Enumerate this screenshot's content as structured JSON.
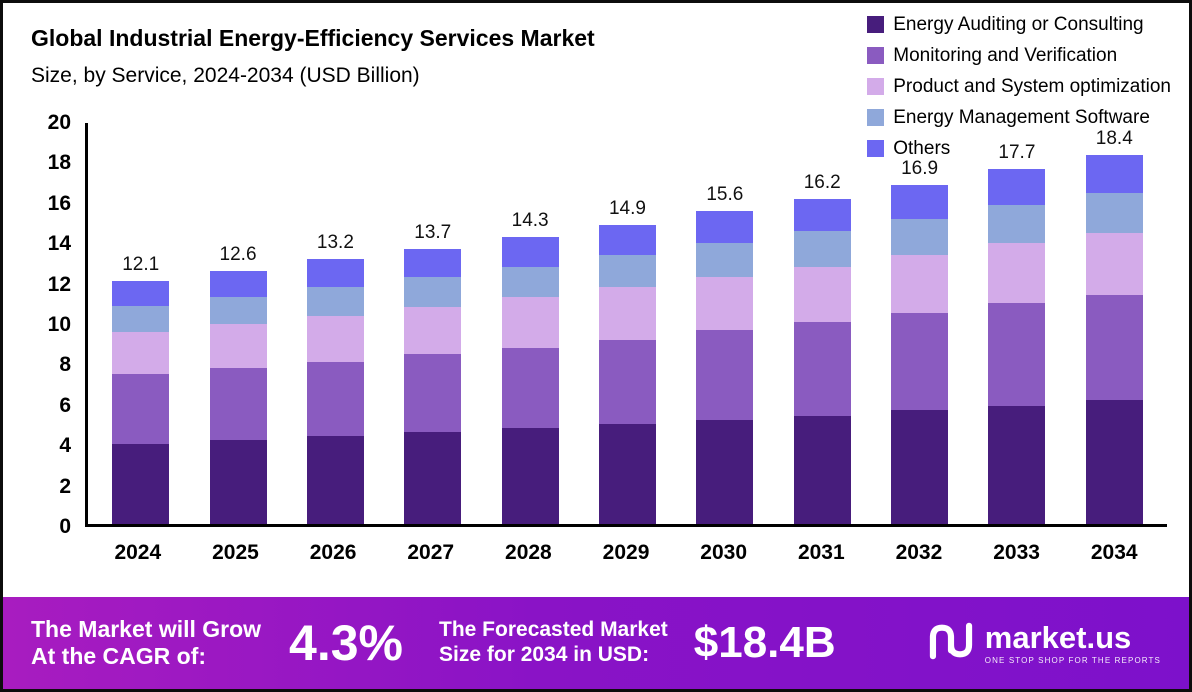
{
  "header": {
    "title": "Global Industrial Energy-Efficiency Services Market",
    "subtitle": "Size, by Service, 2024-2034 (USD Billion)"
  },
  "chart_data": {
    "type": "bar",
    "stacked": true,
    "title": "Global Industrial Energy-Efficiency Services Market Size, by Service, 2024-2034 (USD Billion)",
    "categories": [
      "2024",
      "2025",
      "2026",
      "2027",
      "2028",
      "2029",
      "2030",
      "2031",
      "2032",
      "2033",
      "2034"
    ],
    "series": [
      {
        "name": "Energy Auditing or Consulting",
        "color": "#471d7c",
        "values": [
          4.0,
          4.2,
          4.4,
          4.6,
          4.8,
          5.0,
          5.2,
          5.4,
          5.7,
          5.9,
          6.2
        ]
      },
      {
        "name": "Monitoring and Verification",
        "color": "#8a5bc0",
        "values": [
          3.5,
          3.6,
          3.7,
          3.9,
          4.0,
          4.2,
          4.5,
          4.7,
          4.8,
          5.1,
          5.2
        ]
      },
      {
        "name": "Product and System optimization",
        "color": "#d3abe9",
        "values": [
          2.1,
          2.2,
          2.3,
          2.3,
          2.5,
          2.6,
          2.6,
          2.7,
          2.9,
          3.0,
          3.1
        ]
      },
      {
        "name": "Energy Management Software",
        "color": "#8fa8da",
        "values": [
          1.3,
          1.3,
          1.4,
          1.5,
          1.5,
          1.6,
          1.7,
          1.8,
          1.8,
          1.9,
          2.0
        ]
      },
      {
        "name": "Others",
        "color": "#6c67f2",
        "values": [
          1.2,
          1.3,
          1.4,
          1.4,
          1.5,
          1.5,
          1.6,
          1.6,
          1.7,
          1.8,
          1.9
        ]
      }
    ],
    "totals": [
      "12.1",
      "12.6",
      "13.2",
      "13.7",
      "14.3",
      "14.9",
      "15.6",
      "16.2",
      "16.9",
      "17.7",
      "18.4"
    ],
    "ylim": [
      0,
      20
    ],
    "yticks": [
      0,
      2,
      4,
      6,
      8,
      10,
      12,
      14,
      16,
      18,
      20
    ],
    "grid": false,
    "legend_position": "top-right"
  },
  "footer": {
    "cagr_line1": "The Market will Grow",
    "cagr_line2": "At the CAGR of:",
    "cagr_value": "4.3%",
    "forecast_line1": "The Forecasted Market",
    "forecast_line2": "Size for 2034 in USD:",
    "forecast_value": "$18.4B",
    "brand_name": "market.us",
    "brand_tagline": "ONE STOP SHOP FOR THE REPORTS"
  }
}
